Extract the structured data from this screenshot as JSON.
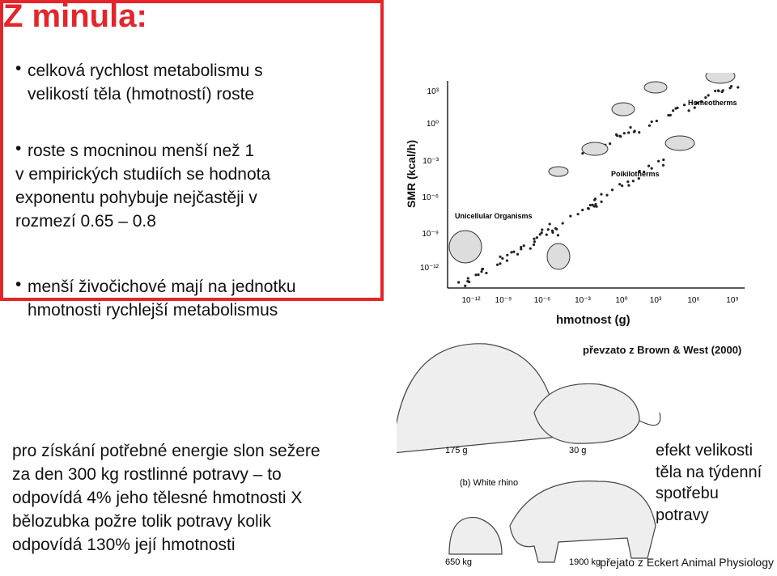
{
  "header": {
    "title": "Z minula:"
  },
  "box": {
    "bullets": [
      {
        "lines": [
          "celková rychlost metabolismu s",
          "velikostí těla (hmotností) roste"
        ]
      },
      {
        "lines": [
          "roste s mocninou menší než 1",
          "v empirických studiích se hodnota",
          "exponentu pohybuje nejčastěji v",
          "rozmezí 0.65 – 0.8"
        ]
      },
      {
        "lines": [
          "menší živočichové mají na jednotku",
          "hmotnosti rychlejší metabolismus"
        ]
      }
    ]
  },
  "figure": {
    "y_label": "SMR (kcal/h)",
    "x_label": "hmotnost (g)",
    "y_ticks": [
      "10³",
      "10⁰",
      "10⁻³",
      "10⁻⁶",
      "10⁻⁹",
      "10⁻¹²"
    ],
    "x_ticks": [
      "10⁻¹²",
      "10⁻⁹",
      "10⁻⁶",
      "10⁻³",
      "10⁰",
      "10³",
      "10⁶",
      "10⁹"
    ],
    "groups": [
      "Homeotherms",
      "Poikilotherms",
      "Unicellular Organisms"
    ],
    "source": "převzato z Brown & West (2000)"
  },
  "illustration": {
    "labels": [
      "175 g",
      "30 g",
      "(b) White rhino",
      "650 kg",
      "1900 kg"
    ],
    "source": "přejato z Eckert Animal Physiology"
  },
  "bottom": {
    "lines": [
      "pro získání potřebné energie slon sežere",
      "za den 300 kg rostlinné potravy – to",
      "odpovídá 4% jeho tělesné hmotnosti X",
      "bělozubka požre tolik potravy kolik",
      "odpovídá 130% její hmotnosti"
    ]
  },
  "side": {
    "lines": [
      "efekt velikosti",
      "těla na týdenní",
      "spotřebu",
      "potravy"
    ]
  }
}
